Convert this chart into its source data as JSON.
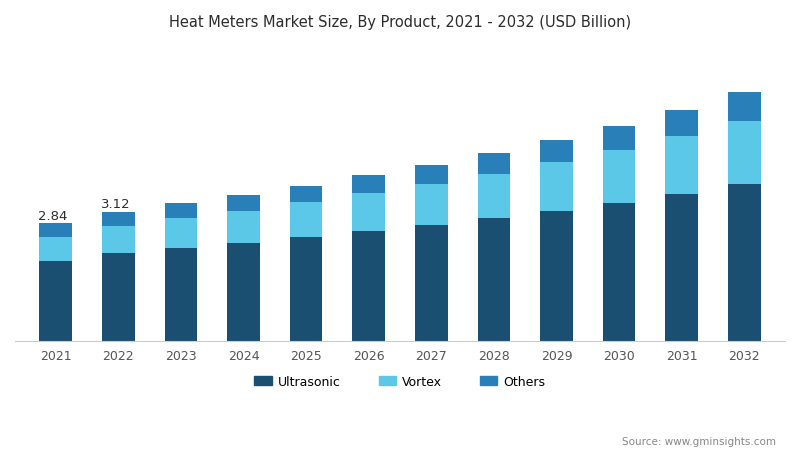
{
  "title": "Heat Meters Market Size, By Product, 2021 - 2032 (USD Billion)",
  "years": [
    2021,
    2022,
    2023,
    2024,
    2025,
    2026,
    2027,
    2028,
    2029,
    2030,
    2031,
    2032
  ],
  "ultrasonic": [
    1.92,
    2.12,
    2.24,
    2.36,
    2.5,
    2.65,
    2.8,
    2.96,
    3.14,
    3.34,
    3.55,
    3.78
  ],
  "vortex": [
    0.6,
    0.66,
    0.72,
    0.78,
    0.85,
    0.92,
    1.0,
    1.08,
    1.17,
    1.28,
    1.4,
    1.54
  ],
  "others": [
    0.32,
    0.34,
    0.36,
    0.38,
    0.4,
    0.43,
    0.46,
    0.49,
    0.53,
    0.57,
    0.62,
    0.68
  ],
  "annotations": {
    "2021": "2.84",
    "2022": "3.12"
  },
  "color_ultrasonic": "#1b4f72",
  "color_vortex": "#5bc8e8",
  "color_others": "#2980b9",
  "background_color": "#ffffff",
  "legend_labels": [
    "Ultrasonic",
    "Vortex",
    "Others"
  ],
  "source_text": "Source: www.gminsights.com",
  "title_color": "#2c2c2c",
  "annotation_color": "#2c2c2c",
  "bar_width": 0.52,
  "ylim": [
    0,
    7.0
  ]
}
